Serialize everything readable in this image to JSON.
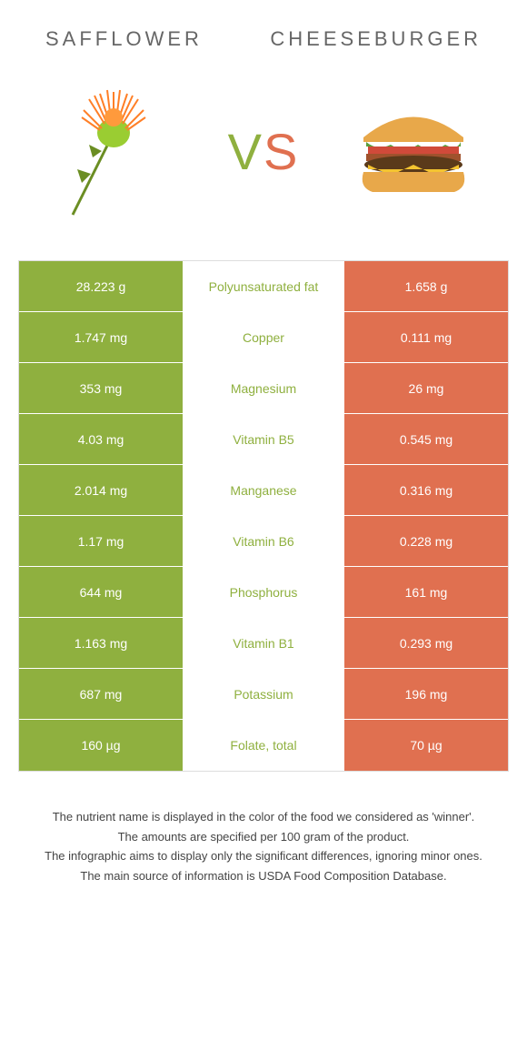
{
  "header": {
    "left": "Safflower",
    "right": "Cheeseburger"
  },
  "vs": {
    "v": "V",
    "s": "S"
  },
  "colors": {
    "green": "#8fb03f",
    "orange": "#e07050",
    "white": "#ffffff"
  },
  "table": {
    "left_bg": "#8fb03f",
    "right_bg": "#e07050",
    "mid_color": "#8fb03f",
    "rows": [
      {
        "left": "28.223 g",
        "mid": "Polyunsaturated fat",
        "right": "1.658 g"
      },
      {
        "left": "1.747 mg",
        "mid": "Copper",
        "right": "0.111 mg"
      },
      {
        "left": "353 mg",
        "mid": "Magnesium",
        "right": "26 mg"
      },
      {
        "left": "4.03 mg",
        "mid": "Vitamin B5",
        "right": "0.545 mg"
      },
      {
        "left": "2.014 mg",
        "mid": "Manganese",
        "right": "0.316 mg"
      },
      {
        "left": "1.17 mg",
        "mid": "Vitamin B6",
        "right": "0.228 mg"
      },
      {
        "left": "644 mg",
        "mid": "Phosphorus",
        "right": "161 mg"
      },
      {
        "left": "1.163 mg",
        "mid": "Vitamin B1",
        "right": "0.293 mg"
      },
      {
        "left": "687 mg",
        "mid": "Potassium",
        "right": "196 mg"
      },
      {
        "left": "160 µg",
        "mid": "Folate, total",
        "right": "70 µg"
      }
    ]
  },
  "footer": {
    "l1": "The nutrient name is displayed in the color of the food we considered as 'winner'.",
    "l2": "The amounts are specified per 100 gram of the product.",
    "l3": "The infographic aims to display only the significant differences, ignoring minor ones.",
    "l4": "The main source of information is USDA Food Composition Database."
  }
}
